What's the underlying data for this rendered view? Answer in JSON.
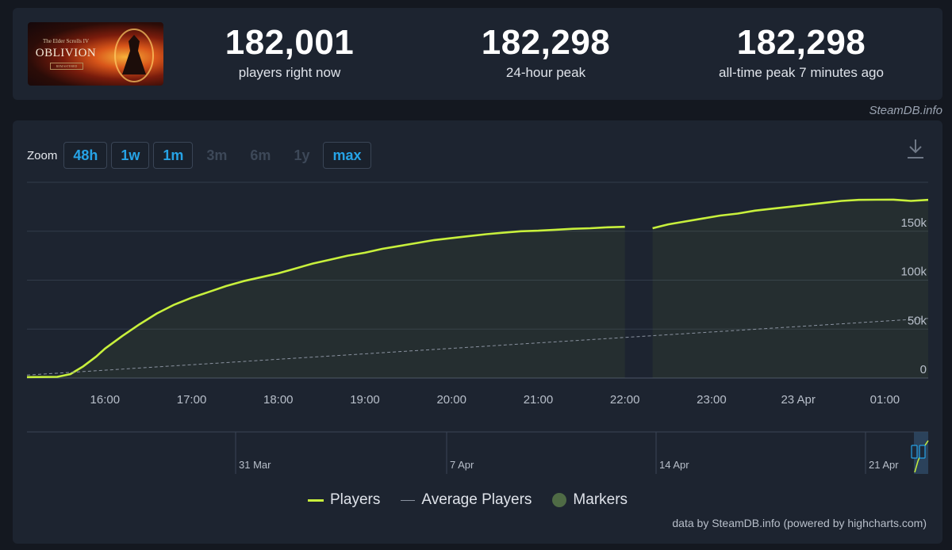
{
  "header": {
    "logo": {
      "sup_text": "The Elder Scrolls IV",
      "title": "OBLIVION",
      "sub_text": "REMASTERED"
    },
    "stats": [
      {
        "value": "182,001",
        "label": "players right now"
      },
      {
        "value": "182,298",
        "label": "24-hour peak"
      },
      {
        "value": "182,298",
        "label": "all-time peak 7 minutes ago"
      }
    ],
    "attribution": "SteamDB.info"
  },
  "zoom": {
    "label": "Zoom",
    "buttons": [
      {
        "label": "48h",
        "enabled": true
      },
      {
        "label": "1w",
        "enabled": true
      },
      {
        "label": "1m",
        "enabled": true
      },
      {
        "label": "3m",
        "enabled": false
      },
      {
        "label": "6m",
        "enabled": false
      },
      {
        "label": "1y",
        "enabled": false
      },
      {
        "label": "max",
        "enabled": true
      }
    ]
  },
  "chart_data": {
    "type": "line",
    "title": "",
    "x_ticks": [
      "16:00",
      "17:00",
      "18:00",
      "19:00",
      "20:00",
      "21:00",
      "22:00",
      "23:00",
      "23 Apr",
      "01:00"
    ],
    "y_ticks": [
      "0",
      "50k",
      "100k",
      "150k"
    ],
    "ylim": [
      0,
      200000
    ],
    "series": [
      {
        "name": "Players",
        "color": "#c8f03c",
        "x_hours": [
          15.1,
          15.45,
          15.6,
          15.75,
          15.9,
          16.0,
          16.2,
          16.4,
          16.6,
          16.8,
          17.0,
          17.2,
          17.4,
          17.6,
          17.8,
          18.0,
          18.2,
          18.4,
          18.6,
          18.8,
          19.0,
          19.2,
          19.4,
          19.6,
          19.8,
          20.0,
          20.2,
          20.4,
          20.6,
          20.8,
          21.0,
          21.2,
          21.4,
          21.6,
          21.8,
          22.0,
          null,
          22.32,
          22.5,
          22.7,
          22.9,
          23.1,
          23.3,
          23.5,
          23.7,
          23.9,
          24.1,
          24.3,
          24.5,
          24.7,
          24.9,
          25.1,
          25.3,
          25.5
        ],
        "values": [
          1000,
          1200,
          4000,
          12000,
          22000,
          30000,
          43000,
          55000,
          66000,
          75000,
          82000,
          88000,
          94000,
          99000,
          103000,
          107000,
          112000,
          117000,
          121000,
          125000,
          128000,
          132000,
          135000,
          138000,
          141000,
          143000,
          145000,
          147000,
          148500,
          150000,
          150500,
          151500,
          152500,
          153000,
          154000,
          154500,
          null,
          153000,
          157000,
          160000,
          163000,
          166000,
          168000,
          171000,
          173000,
          175000,
          177000,
          179000,
          181000,
          182000,
          182200,
          182300,
          181000,
          182001
        ]
      },
      {
        "name": "Average Players",
        "color": "#8a92a0",
        "x_hours": [
          15.1,
          25.5
        ],
        "values": [
          3000,
          61000
        ]
      }
    ],
    "legend": [
      {
        "name": "Players",
        "color": "#c8f03c",
        "kind": "line"
      },
      {
        "name": "Average Players",
        "color": "#8a92a0",
        "kind": "dash"
      },
      {
        "name": "Markers",
        "color": "#4f6b45",
        "kind": "dot"
      }
    ],
    "navigator_ticks": [
      "31 Mar",
      "7 Apr",
      "14 Apr",
      "21 Apr"
    ],
    "grid": true
  },
  "credits": "data by SteamDB.info (powered by highcharts.com)"
}
